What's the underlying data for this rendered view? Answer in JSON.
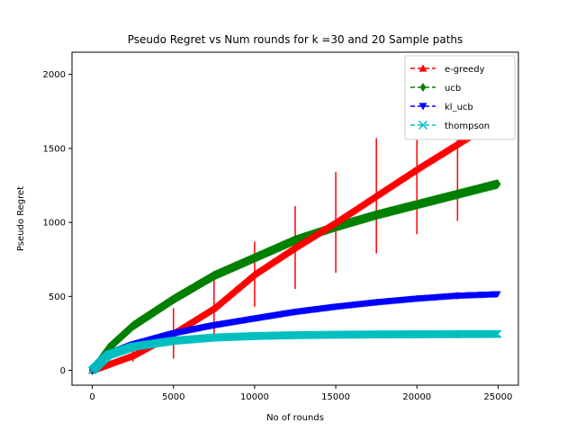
{
  "chart_data": {
    "type": "line",
    "title": "Pseudo Regret vs Num rounds for k =30 and 20 Sample paths",
    "xlabel": "No of rounds",
    "ylabel": "Pseudo Regret",
    "xlim": [
      -1250,
      26250
    ],
    "ylim": [
      -100,
      2150
    ],
    "x_ticks": [
      0,
      5000,
      10000,
      15000,
      20000,
      25000
    ],
    "x_tick_labels": [
      "0",
      "5000",
      "10000",
      "15000",
      "20000",
      "25000"
    ],
    "y_ticks": [
      0,
      500,
      1000,
      1500,
      2000
    ],
    "y_tick_labels": [
      "0",
      "500",
      "1000",
      "1500",
      "2000"
    ],
    "grid": false,
    "legend_position": "top-right",
    "series": [
      {
        "name": "e-greedy",
        "color": "#ff0000",
        "marker": "triangle-up",
        "x": [
          0,
          2500,
          5000,
          7500,
          10000,
          12500,
          15000,
          17500,
          20000,
          22500,
          25000
        ],
        "y": [
          0,
          100,
          250,
          420,
          650,
          830,
          1000,
          1180,
          1360,
          1530,
          1700
        ],
        "error": [
          0,
          40,
          170,
          190,
          220,
          280,
          340,
          390,
          440,
          520,
          0
        ]
      },
      {
        "name": "ucb",
        "color": "#008000",
        "marker": "diamond",
        "x": [
          0,
          1000,
          2500,
          5000,
          7500,
          10000,
          12500,
          15000,
          17500,
          20000,
          22500,
          25000
        ],
        "y": [
          0,
          150,
          300,
          480,
          640,
          760,
          880,
          970,
          1050,
          1120,
          1190,
          1260
        ],
        "error": [
          0,
          0,
          0,
          0,
          0,
          0,
          0,
          0,
          0,
          0,
          0,
          0
        ]
      },
      {
        "name": "kl_ucb",
        "color": "#0000ff",
        "marker": "triangle-down",
        "x": [
          0,
          1000,
          2500,
          5000,
          7500,
          10000,
          12500,
          15000,
          17500,
          20000,
          22500,
          25000
        ],
        "y": [
          0,
          110,
          175,
          250,
          305,
          350,
          395,
          430,
          460,
          485,
          505,
          515
        ],
        "error": [
          0,
          10,
          12,
          14,
          16,
          18,
          20,
          20,
          22,
          22,
          24,
          0
        ]
      },
      {
        "name": "thompson",
        "color": "#00bfbf",
        "marker": "x",
        "x": [
          0,
          1000,
          2500,
          5000,
          7500,
          10000,
          12500,
          15000,
          17500,
          20000,
          22500,
          25000
        ],
        "y": [
          0,
          105,
          160,
          200,
          222,
          232,
          238,
          241,
          243,
          244,
          245,
          246
        ],
        "error": [
          0,
          10,
          14,
          18,
          20,
          22,
          24,
          24,
          26,
          26,
          28,
          0
        ]
      }
    ]
  }
}
